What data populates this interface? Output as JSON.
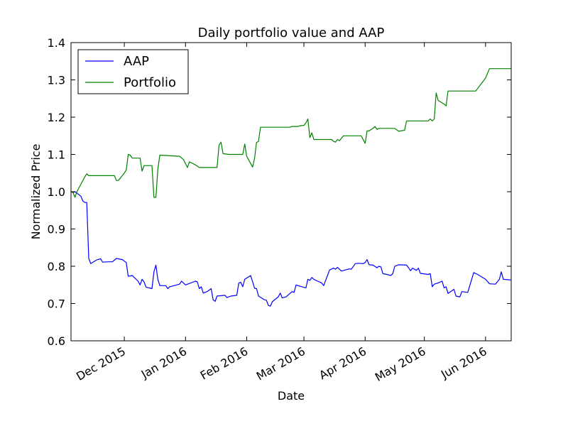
{
  "chart_data": {
    "type": "line",
    "title": "Daily portfolio value and AAP",
    "xlabel": "Date",
    "ylabel": "Normalized Price",
    "ylim": [
      0.6,
      1.4
    ],
    "yticks": [
      0.6,
      0.7,
      0.8,
      0.9,
      1.0,
      1.1,
      1.2,
      1.3,
      1.4
    ],
    "ytick_labels": [
      "0.6",
      "0.7",
      "0.8",
      "0.9",
      "1.0",
      "1.1",
      "1.2",
      "1.3",
      "1.4"
    ],
    "xlim": [
      "2015-11-04",
      "2016-06-14"
    ],
    "xticks": [
      {
        "date": "2015-12-01",
        "label": "Dec 2015"
      },
      {
        "date": "2016-01-01",
        "label": "Jan 2016"
      },
      {
        "date": "2016-02-01",
        "label": "Feb 2016"
      },
      {
        "date": "2016-03-01",
        "label": "Mar 2016"
      },
      {
        "date": "2016-04-01",
        "label": "Apr 2016"
      },
      {
        "date": "2016-05-01",
        "label": "May 2016"
      },
      {
        "date": "2016-06-01",
        "label": "Jun 2016"
      }
    ],
    "grid": false,
    "legend_position": "top-left",
    "series": [
      {
        "name": "AAP",
        "color": "#0000ff",
        "points": [
          [
            "2015-11-04",
            1.0
          ],
          [
            "2015-11-05",
            0.998
          ],
          [
            "2015-11-06",
            1.0
          ],
          [
            "2015-11-09",
            0.988
          ],
          [
            "2015-11-10",
            0.975
          ],
          [
            "2015-11-11",
            0.971
          ],
          [
            "2015-11-12",
            0.971
          ],
          [
            "2015-11-13",
            0.821
          ],
          [
            "2015-11-14",
            0.807
          ],
          [
            "2015-11-17",
            0.817
          ],
          [
            "2015-11-19",
            0.82
          ],
          [
            "2015-11-20",
            0.811
          ],
          [
            "2015-11-23",
            0.812
          ],
          [
            "2015-11-25",
            0.812
          ],
          [
            "2015-11-27",
            0.821
          ],
          [
            "2015-11-30",
            0.818
          ],
          [
            "2015-12-02",
            0.81
          ],
          [
            "2015-12-03",
            0.773
          ],
          [
            "2015-12-05",
            0.775
          ],
          [
            "2015-12-08",
            0.76
          ],
          [
            "2015-12-09",
            0.75
          ],
          [
            "2015-12-10",
            0.765
          ],
          [
            "2015-12-11",
            0.758
          ],
          [
            "2015-12-12",
            0.744
          ],
          [
            "2015-12-15",
            0.74
          ],
          [
            "2015-12-16",
            0.785
          ],
          [
            "2015-12-17",
            0.803
          ],
          [
            "2015-12-18",
            0.765
          ],
          [
            "2015-12-19",
            0.748
          ],
          [
            "2015-12-22",
            0.748
          ],
          [
            "2015-12-23",
            0.74
          ],
          [
            "2015-12-24",
            0.745
          ],
          [
            "2015-12-29",
            0.752
          ],
          [
            "2015-12-30",
            0.76
          ],
          [
            "2016-01-01",
            0.75
          ],
          [
            "2016-01-06",
            0.76
          ],
          [
            "2016-01-07",
            0.758
          ],
          [
            "2016-01-08",
            0.74
          ],
          [
            "2016-01-09",
            0.745
          ],
          [
            "2016-01-10",
            0.728
          ],
          [
            "2016-01-12",
            0.732
          ],
          [
            "2016-01-14",
            0.74
          ],
          [
            "2016-01-15",
            0.71
          ],
          [
            "2016-01-16",
            0.706
          ],
          [
            "2016-01-17",
            0.72
          ],
          [
            "2016-01-21",
            0.722
          ],
          [
            "2016-01-22",
            0.716
          ],
          [
            "2016-01-24",
            0.72
          ],
          [
            "2016-01-27",
            0.722
          ],
          [
            "2016-01-28",
            0.755
          ],
          [
            "2016-01-29",
            0.757
          ],
          [
            "2016-01-30",
            0.745
          ],
          [
            "2016-01-31",
            0.765
          ],
          [
            "2016-02-03",
            0.775
          ],
          [
            "2016-02-05",
            0.741
          ],
          [
            "2016-02-06",
            0.74
          ],
          [
            "2016-02-07",
            0.72
          ],
          [
            "2016-02-10",
            0.71
          ],
          [
            "2016-02-11",
            0.709
          ],
          [
            "2016-02-12",
            0.695
          ],
          [
            "2016-02-13",
            0.693
          ],
          [
            "2016-02-14",
            0.705
          ],
          [
            "2016-02-17",
            0.718
          ],
          [
            "2016-02-18",
            0.728
          ],
          [
            "2016-02-19",
            0.715
          ],
          [
            "2016-02-21",
            0.718
          ],
          [
            "2016-02-24",
            0.732
          ],
          [
            "2016-02-25",
            0.73
          ],
          [
            "2016-02-26",
            0.75
          ],
          [
            "2016-02-27",
            0.748
          ],
          [
            "2016-03-02",
            0.742
          ],
          [
            "2016-03-03",
            0.765
          ],
          [
            "2016-03-04",
            0.762
          ],
          [
            "2016-03-05",
            0.77
          ],
          [
            "2016-03-06",
            0.765
          ],
          [
            "2016-03-08",
            0.76
          ],
          [
            "2016-03-10",
            0.755
          ],
          [
            "2016-03-11",
            0.748
          ],
          [
            "2016-03-14",
            0.79
          ],
          [
            "2016-03-16",
            0.795
          ],
          [
            "2016-03-17",
            0.792
          ],
          [
            "2016-03-18",
            0.797
          ],
          [
            "2016-03-20",
            0.787
          ],
          [
            "2016-03-22",
            0.79
          ],
          [
            "2016-03-24",
            0.793
          ],
          [
            "2016-03-25",
            0.792
          ],
          [
            "2016-03-27",
            0.807
          ],
          [
            "2016-03-29",
            0.808
          ],
          [
            "2016-03-31",
            0.807
          ],
          [
            "2016-04-01",
            0.81
          ],
          [
            "2016-04-02",
            0.818
          ],
          [
            "2016-04-03",
            0.804
          ],
          [
            "2016-04-05",
            0.803
          ],
          [
            "2016-04-07",
            0.796
          ],
          [
            "2016-04-08",
            0.8
          ],
          [
            "2016-04-09",
            0.798
          ],
          [
            "2016-04-10",
            0.78
          ],
          [
            "2016-04-12",
            0.778
          ],
          [
            "2016-04-14",
            0.775
          ],
          [
            "2016-04-15",
            0.78
          ],
          [
            "2016-04-16",
            0.8
          ],
          [
            "2016-04-18",
            0.804
          ],
          [
            "2016-04-22",
            0.803
          ],
          [
            "2016-04-23",
            0.796
          ],
          [
            "2016-04-24",
            0.788
          ],
          [
            "2016-04-25",
            0.795
          ],
          [
            "2016-04-27",
            0.789
          ],
          [
            "2016-04-28",
            0.795
          ],
          [
            "2016-04-29",
            0.781
          ],
          [
            "2016-05-03",
            0.778
          ],
          [
            "2016-05-04",
            0.78
          ],
          [
            "2016-05-05",
            0.745
          ],
          [
            "2016-05-06",
            0.752
          ],
          [
            "2016-05-08",
            0.755
          ],
          [
            "2016-05-10",
            0.76
          ],
          [
            "2016-05-11",
            0.742
          ],
          [
            "2016-05-12",
            0.745
          ],
          [
            "2016-05-13",
            0.727
          ],
          [
            "2016-05-16",
            0.738
          ],
          [
            "2016-05-17",
            0.72
          ],
          [
            "2016-05-19",
            0.718
          ],
          [
            "2016-05-20",
            0.732
          ],
          [
            "2016-05-23",
            0.73
          ],
          [
            "2016-05-26",
            0.783
          ],
          [
            "2016-05-28",
            0.778
          ],
          [
            "2016-06-01",
            0.765
          ],
          [
            "2016-06-03",
            0.753
          ],
          [
            "2016-06-06",
            0.752
          ],
          [
            "2016-06-08",
            0.765
          ],
          [
            "2016-06-09",
            0.785
          ],
          [
            "2016-06-10",
            0.765
          ],
          [
            "2016-06-14",
            0.763
          ]
        ]
      },
      {
        "name": "Portfolio",
        "color": "#008000",
        "points": [
          [
            "2015-11-04",
            1.0
          ],
          [
            "2015-11-05",
            0.998
          ],
          [
            "2015-11-06",
            0.985
          ],
          [
            "2015-11-07",
            1.0
          ],
          [
            "2015-11-11",
            1.04
          ],
          [
            "2015-11-12",
            1.048
          ],
          [
            "2015-11-13",
            1.043
          ],
          [
            "2015-11-26",
            1.043
          ],
          [
            "2015-11-27",
            1.03
          ],
          [
            "2015-11-28",
            1.03
          ],
          [
            "2015-12-01",
            1.05
          ],
          [
            "2015-12-02",
            1.058
          ],
          [
            "2015-12-03",
            1.1
          ],
          [
            "2015-12-04",
            1.098
          ],
          [
            "2015-12-05",
            1.09
          ],
          [
            "2015-12-09",
            1.09
          ],
          [
            "2015-12-10",
            1.055
          ],
          [
            "2015-12-11",
            1.07
          ],
          [
            "2015-12-15",
            1.07
          ],
          [
            "2015-12-16",
            0.985
          ],
          [
            "2015-12-17",
            0.985
          ],
          [
            "2015-12-18",
            1.06
          ],
          [
            "2015-12-19",
            1.098
          ],
          [
            "2015-12-29",
            1.095
          ],
          [
            "2015-12-31",
            1.086
          ],
          [
            "2016-01-02",
            1.065
          ],
          [
            "2016-01-03",
            1.08
          ],
          [
            "2016-01-06",
            1.072
          ],
          [
            "2016-01-08",
            1.065
          ],
          [
            "2016-01-17",
            1.065
          ],
          [
            "2016-01-18",
            1.125
          ],
          [
            "2016-01-19",
            1.133
          ],
          [
            "2016-01-20",
            1.102
          ],
          [
            "2016-01-23",
            1.1
          ],
          [
            "2016-01-30",
            1.1
          ],
          [
            "2016-01-31",
            1.128
          ],
          [
            "2016-02-01",
            1.095
          ],
          [
            "2016-02-04",
            1.066
          ],
          [
            "2016-02-05",
            1.09
          ],
          [
            "2016-02-06",
            1.132
          ],
          [
            "2016-02-07",
            1.135
          ],
          [
            "2016-02-08",
            1.173
          ],
          [
            "2016-02-23",
            1.173
          ],
          [
            "2016-02-24",
            1.175
          ],
          [
            "2016-02-27",
            1.175
          ],
          [
            "2016-02-28",
            1.177
          ],
          [
            "2016-03-01",
            1.178
          ],
          [
            "2016-03-02",
            1.185
          ],
          [
            "2016-03-03",
            1.195
          ],
          [
            "2016-03-04",
            1.145
          ],
          [
            "2016-03-05",
            1.158
          ],
          [
            "2016-03-06",
            1.14
          ],
          [
            "2016-03-15",
            1.14
          ],
          [
            "2016-03-16",
            1.135
          ],
          [
            "2016-03-17",
            1.133
          ],
          [
            "2016-03-18",
            1.14
          ],
          [
            "2016-03-19",
            1.137
          ],
          [
            "2016-03-21",
            1.15
          ],
          [
            "2016-03-30",
            1.15
          ],
          [
            "2016-04-01",
            1.13
          ],
          [
            "2016-04-02",
            1.163
          ],
          [
            "2016-04-03",
            1.163
          ],
          [
            "2016-04-05",
            1.17
          ],
          [
            "2016-04-06",
            1.175
          ],
          [
            "2016-04-07",
            1.167
          ],
          [
            "2016-04-08",
            1.17
          ],
          [
            "2016-04-16",
            1.17
          ],
          [
            "2016-04-18",
            1.162
          ],
          [
            "2016-04-21",
            1.165
          ],
          [
            "2016-04-22",
            1.19
          ],
          [
            "2016-05-03",
            1.19
          ],
          [
            "2016-05-04",
            1.195
          ],
          [
            "2016-05-05",
            1.19
          ],
          [
            "2016-05-06",
            1.195
          ],
          [
            "2016-05-07",
            1.265
          ],
          [
            "2016-05-08",
            1.245
          ],
          [
            "2016-05-11",
            1.235
          ],
          [
            "2016-05-12",
            1.23
          ],
          [
            "2016-05-13",
            1.27
          ],
          [
            "2016-05-27",
            1.27
          ],
          [
            "2016-06-01",
            1.305
          ],
          [
            "2016-06-03",
            1.33
          ],
          [
            "2016-06-14",
            1.33
          ]
        ]
      }
    ]
  }
}
